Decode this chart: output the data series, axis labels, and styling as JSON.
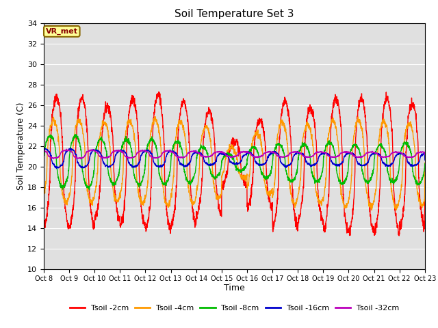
{
  "title": "Soil Temperature Set 3",
  "xlabel": "Time",
  "ylabel": "Soil Temperature (C)",
  "ylim": [
    10,
    34
  ],
  "yticks": [
    10,
    12,
    14,
    16,
    18,
    20,
    22,
    24,
    26,
    28,
    30,
    32,
    34
  ],
  "xtick_labels": [
    "Oct 8",
    "Oct 9",
    "Oct 10",
    "Oct 11",
    "Oct 12",
    "Oct 13",
    "Oct 14",
    "Oct 15",
    "Oct 16",
    "Oct 17",
    "Oct 18",
    "Oct 19",
    "Oct 20",
    "Oct 21",
    "Oct 22",
    "Oct 23"
  ],
  "colors": {
    "Tsoil -2cm": "#ff0000",
    "Tsoil -4cm": "#ff9900",
    "Tsoil -8cm": "#00bb00",
    "Tsoil -16cm": "#0000cc",
    "Tsoil -32cm": "#bb00bb"
  },
  "bg_color": "#e0e0e0",
  "annotation_box": {
    "text": "VR_met",
    "facecolor": "#ffff99",
    "edgecolor": "#886600"
  },
  "num_days": 15,
  "spd": 144,
  "base_2cm": 20.5,
  "base_4cm": 20.5,
  "base_8cm": 20.5,
  "base_16cm": 20.8,
  "base_32cm": 21.2,
  "amp_2cm": [
    6.2,
    6.2,
    5.5,
    6.2,
    6.6,
    6.0,
    5.0,
    2.2,
    4.2,
    6.2,
    5.5,
    6.5,
    6.5,
    6.5,
    6.0
  ],
  "amp_4cm": [
    4.0,
    4.0,
    3.8,
    4.0,
    4.2,
    4.0,
    3.5,
    1.5,
    3.0,
    4.0,
    3.8,
    4.2,
    4.2,
    4.2,
    4.0
  ],
  "amp_8cm": [
    2.5,
    2.5,
    2.2,
    2.2,
    2.2,
    2.0,
    1.5,
    0.8,
    1.5,
    1.8,
    1.8,
    2.0,
    1.8,
    1.8,
    2.0
  ],
  "amp_16cm": [
    0.9,
    0.9,
    0.8,
    0.8,
    0.8,
    0.7,
    0.6,
    0.5,
    0.6,
    0.7,
    0.6,
    0.6,
    0.6,
    0.6,
    0.6
  ],
  "amp_32cm": [
    0.4,
    0.4,
    0.35,
    0.35,
    0.35,
    0.3,
    0.25,
    0.25,
    0.25,
    0.25,
    0.25,
    0.25,
    0.25,
    0.25,
    0.25
  ],
  "phase_4cm": 0.12,
  "phase_8cm": 0.25,
  "phase_16cm": 0.45,
  "phase_32cm": 0.6,
  "trend_2cm": -0.025,
  "trend_4cm": -0.02,
  "trend_8cm": -0.015,
  "trend_16cm": -0.008,
  "trend_32cm": -0.003,
  "sharpness": 4.0
}
